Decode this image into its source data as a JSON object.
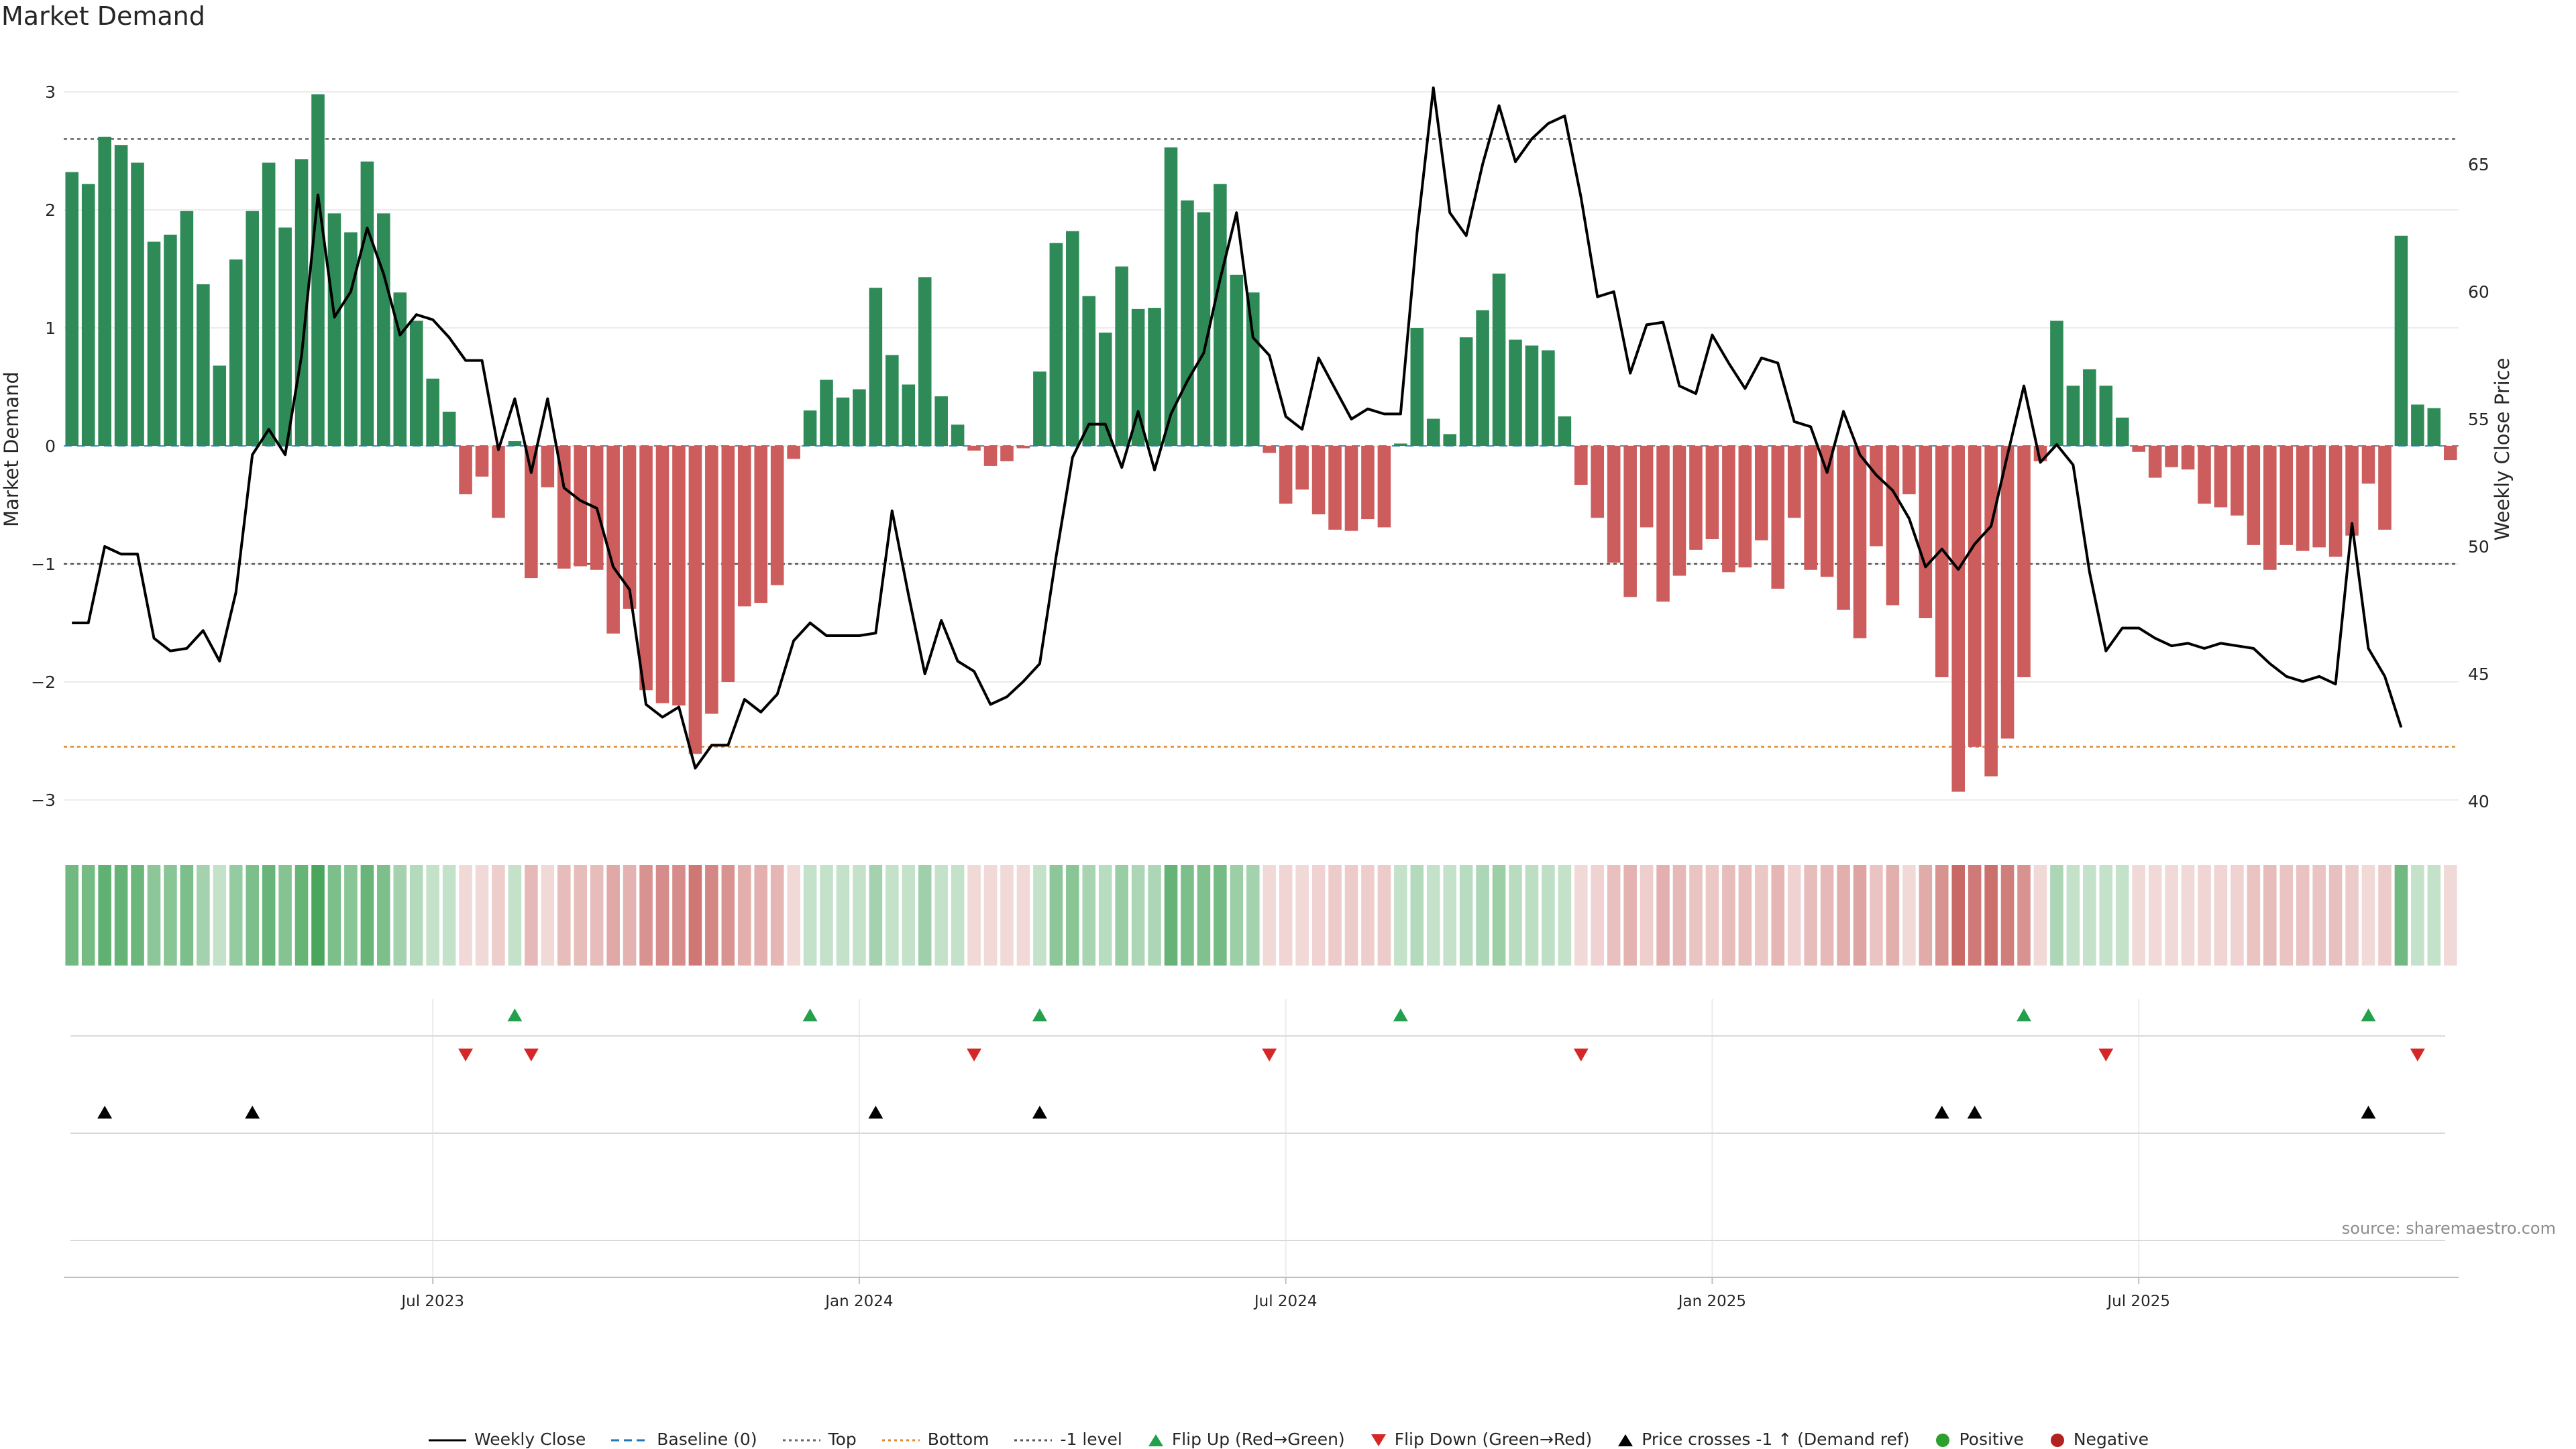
{
  "page": {
    "title": "Market Demand",
    "source": "source: sharemaestro.com"
  },
  "chart_data": {
    "type": "bar+line",
    "title": "Market Demand",
    "ylabel_left": "Market Demand",
    "ylabel_right": "Weekly Close Price",
    "ylim_left": [
      -3.2,
      3.2
    ],
    "ylim_right": [
      39.5,
      68.5
    ],
    "yticks_left": [
      {
        "value": 3,
        "label": "3"
      },
      {
        "value": 2,
        "label": "2"
      },
      {
        "value": 1,
        "label": "1"
      },
      {
        "value": 0,
        "label": "0"
      },
      {
        "value": -1,
        "label": "−1"
      },
      {
        "value": -2,
        "label": "−2"
      },
      {
        "value": -3,
        "label": "−3"
      }
    ],
    "yticks_right": [
      {
        "value": 65,
        "label": "65"
      },
      {
        "value": 60,
        "label": "60"
      },
      {
        "value": 55,
        "label": "55"
      },
      {
        "value": 50,
        "label": "50"
      },
      {
        "value": 45,
        "label": "45"
      },
      {
        "value": 40,
        "label": "40"
      }
    ],
    "x_ticks": [
      {
        "index": 22,
        "label": "Jul 2023"
      },
      {
        "index": 48,
        "label": "Jan 2024"
      },
      {
        "index": 74,
        "label": "Jul 2024"
      },
      {
        "index": 100,
        "label": "Jan 2025"
      },
      {
        "index": 126,
        "label": "Jul 2025"
      }
    ],
    "reference_levels": {
      "top": 2.6,
      "bottom": -2.55,
      "minus_one": -1,
      "baseline": 0
    },
    "demand": [
      2.32,
      2.22,
      2.62,
      2.55,
      2.4,
      1.73,
      1.79,
      1.99,
      1.37,
      0.68,
      1.58,
      1.99,
      2.4,
      1.85,
      2.43,
      2.98,
      1.97,
      1.81,
      2.41,
      1.97,
      1.3,
      1.06,
      0.57,
      0.29,
      -0.41,
      -0.26,
      -0.61,
      0.04,
      -1.12,
      -0.35,
      -1.04,
      -1.02,
      -1.05,
      -1.59,
      -1.38,
      -2.07,
      -2.18,
      -2.2,
      -2.61,
      -2.27,
      -2.0,
      -1.36,
      -1.33,
      -1.18,
      -0.11,
      0.3,
      0.56,
      0.41,
      0.48,
      1.34,
      0.77,
      0.52,
      1.43,
      0.42,
      0.18,
      -0.04,
      -0.17,
      -0.13,
      -0.02,
      0.63,
      1.72,
      1.82,
      1.27,
      0.96,
      1.52,
      1.16,
      1.17,
      2.53,
      2.08,
      1.98,
      2.22,
      1.45,
      1.3,
      -0.06,
      -0.49,
      -0.37,
      -0.58,
      -0.71,
      -0.72,
      -0.62,
      -0.69,
      0.02,
      1.0,
      0.23,
      0.1,
      0.92,
      1.15,
      1.46,
      0.9,
      0.85,
      0.81,
      0.25,
      -0.33,
      -0.61,
      -0.99,
      -1.28,
      -0.69,
      -1.32,
      -1.1,
      -0.88,
      -0.79,
      -1.07,
      -1.03,
      -0.8,
      -1.21,
      -0.61,
      -1.05,
      -1.11,
      -1.39,
      -1.63,
      -0.85,
      -1.35,
      -0.41,
      -1.46,
      -1.96,
      -2.93,
      -2.55,
      -2.8,
      -2.48,
      -1.96,
      -0.13,
      1.06,
      0.51,
      0.65,
      0.51,
      0.24,
      -0.05,
      -0.27,
      -0.18,
      -0.2,
      -0.49,
      -0.52,
      -0.59,
      -0.84,
      -1.05,
      -0.84,
      -0.89,
      -0.86,
      -0.94,
      -0.76,
      -0.32,
      -0.71,
      1.78,
      0.35,
      0.32,
      -0.12
    ],
    "series": [
      {
        "name": "Weekly Close",
        "values": [
          47.0,
          47.0,
          50.0,
          49.7,
          49.7,
          46.4,
          45.9,
          46.0,
          46.7,
          45.5,
          48.2,
          53.6,
          54.6,
          53.6,
          57.5,
          63.8,
          59.0,
          60.0,
          62.5,
          60.7,
          58.3,
          59.1,
          58.9,
          58.2,
          57.3,
          57.3,
          53.8,
          55.8,
          52.9,
          55.8,
          52.3,
          51.8,
          51.5,
          49.2,
          48.3,
          43.8,
          43.3,
          43.7,
          41.3,
          42.2,
          42.2,
          44.0,
          43.5,
          44.2,
          46.3,
          47.0,
          46.5,
          46.5,
          46.5,
          46.6,
          51.4,
          48.1,
          45.0,
          47.1,
          45.5,
          45.1,
          43.8,
          44.1,
          44.7,
          45.4,
          49.6,
          53.5,
          54.8,
          54.8,
          53.1,
          55.3,
          53.0,
          55.2,
          56.5,
          57.6,
          60.5,
          63.1,
          58.2,
          57.5,
          55.1,
          54.6,
          57.4,
          56.2,
          55.0,
          55.4,
          55.2,
          55.2,
          62.3,
          68.0,
          63.1,
          62.2,
          65.0,
          67.3,
          65.1,
          66.0,
          66.6,
          66.9,
          63.7,
          59.8,
          60.0,
          56.8,
          58.7,
          58.8,
          56.3,
          56.0,
          58.3,
          57.2,
          56.2,
          57.4,
          57.2,
          54.9,
          54.7,
          52.9,
          55.3,
          53.6,
          52.8,
          52.2,
          51.1,
          49.2,
          49.9,
          49.1,
          50.1,
          50.8,
          53.6,
          56.3,
          53.3,
          54.0,
          53.2,
          49.0,
          45.9,
          46.8,
          46.8,
          46.4,
          46.1,
          46.2,
          46.0,
          46.2,
          46.1,
          46.0,
          45.4,
          44.9,
          44.7,
          44.9,
          44.6,
          50.9,
          46.0,
          44.9,
          42.9
        ]
      }
    ],
    "strip_intensity": [
      0.72,
      0.7,
      0.8,
      0.78,
      0.75,
      0.58,
      0.6,
      0.66,
      0.46,
      0.28,
      0.54,
      0.66,
      0.76,
      0.62,
      0.77,
      0.92,
      0.66,
      0.6,
      0.76,
      0.66,
      0.46,
      0.38,
      0.26,
      0.2,
      0.22,
      0.18,
      0.28,
      0.12,
      0.4,
      0.2,
      0.38,
      0.38,
      0.38,
      0.5,
      0.44,
      0.62,
      0.66,
      0.66,
      0.78,
      0.68,
      0.62,
      0.46,
      0.45,
      0.42,
      0.12,
      0.2,
      0.26,
      0.22,
      0.24,
      0.46,
      0.3,
      0.24,
      0.48,
      0.22,
      0.15,
      0.12,
      0.14,
      0.13,
      0.12,
      0.28,
      0.58,
      0.6,
      0.44,
      0.36,
      0.52,
      0.42,
      0.42,
      0.78,
      0.66,
      0.64,
      0.7,
      0.5,
      0.46,
      0.12,
      0.24,
      0.2,
      0.26,
      0.3,
      0.3,
      0.28,
      0.3,
      0.12,
      0.38,
      0.18,
      0.14,
      0.36,
      0.42,
      0.5,
      0.36,
      0.34,
      0.33,
      0.18,
      0.18,
      0.26,
      0.36,
      0.44,
      0.28,
      0.45,
      0.4,
      0.34,
      0.32,
      0.38,
      0.37,
      0.32,
      0.42,
      0.26,
      0.38,
      0.4,
      0.46,
      0.52,
      0.34,
      0.46,
      0.22,
      0.48,
      0.62,
      0.86,
      0.76,
      0.82,
      0.74,
      0.62,
      0.12,
      0.42,
      0.26,
      0.3,
      0.26,
      0.16,
      0.12,
      0.16,
      0.13,
      0.14,
      0.24,
      0.24,
      0.26,
      0.34,
      0.38,
      0.34,
      0.35,
      0.34,
      0.36,
      0.3,
      0.18,
      0.3,
      0.72,
      0.2,
      0.2,
      0.12
    ],
    "flip_up_indices": [
      27,
      45,
      59,
      81,
      119,
      140
    ],
    "flip_down_indices": [
      24,
      28,
      55,
      73,
      92,
      124,
      143
    ],
    "price_cross_indices": [
      2,
      11,
      49,
      59,
      114,
      116,
      140
    ],
    "legend": [
      {
        "label": "Weekly Close",
        "type": "line-solid",
        "color": "#000000"
      },
      {
        "label": "Baseline (0)",
        "type": "line-dashed",
        "color": "#1f77b4"
      },
      {
        "label": "Top",
        "type": "line-dotted",
        "color": "#666666"
      },
      {
        "label": "Bottom",
        "type": "line-dotted",
        "color": "#e08a2e"
      },
      {
        "label": "-1 level",
        "type": "line-dotted",
        "color": "#555555"
      },
      {
        "label": "Flip Up (Red→Green)",
        "type": "triangle-up",
        "color": "#22a04b"
      },
      {
        "label": "Flip Down (Green→Red)",
        "type": "triangle-down",
        "color": "#d62728"
      },
      {
        "label": "Price crosses -1 ↑ (Demand ref)",
        "type": "triangle-up",
        "color": "#000000"
      },
      {
        "label": "Positive",
        "type": "circle",
        "color": "#2ca02c"
      },
      {
        "label": "Negative",
        "type": "circle",
        "color": "#b22222"
      }
    ],
    "colors": {
      "positive_bar": "#2e8b57",
      "negative_bar": "#cd5c5c",
      "strip_green": "#3a9e4f",
      "strip_red": "#c0504d"
    }
  }
}
